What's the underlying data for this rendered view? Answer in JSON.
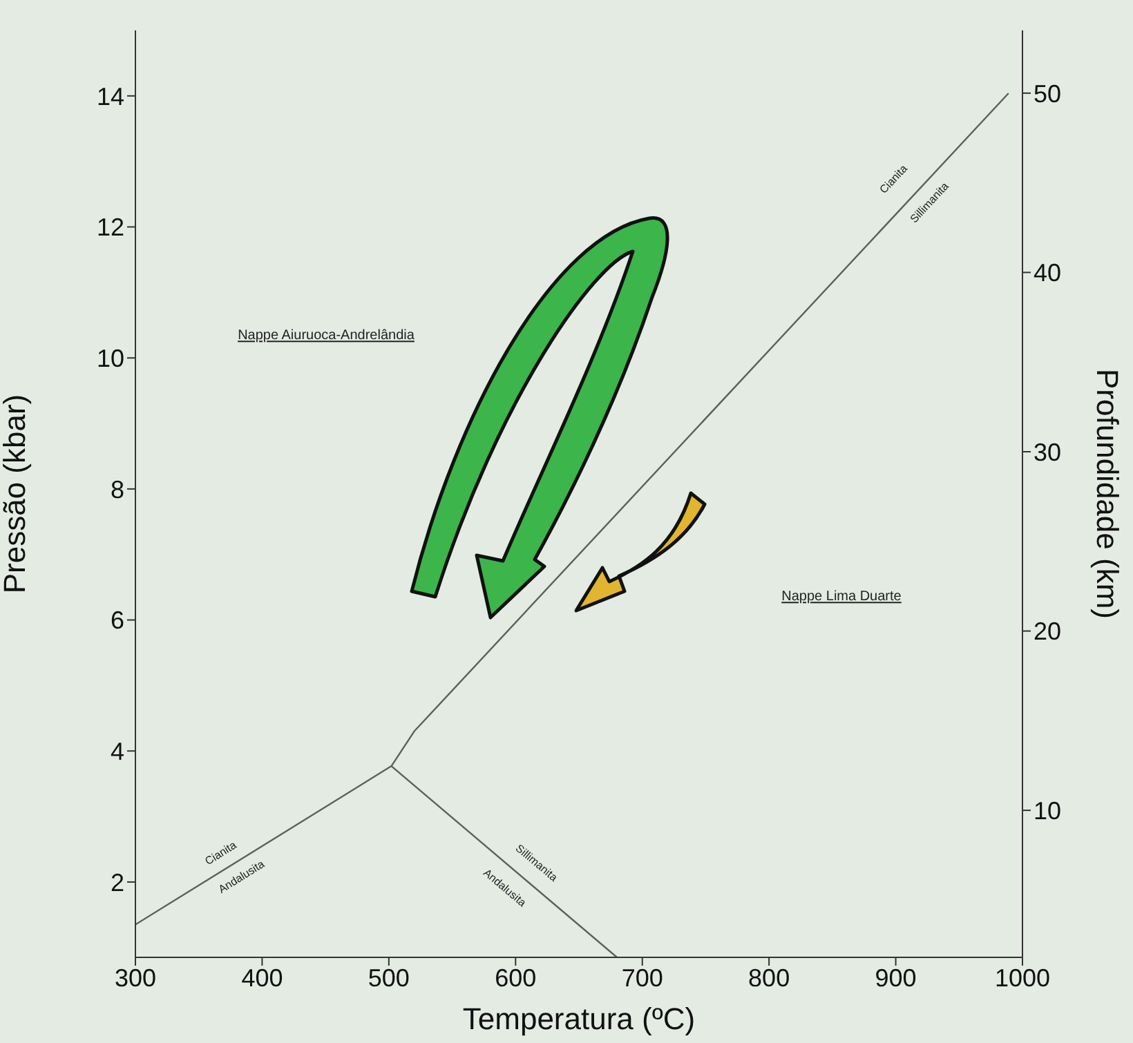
{
  "chart_data": {
    "type": "line",
    "xlabel": "Temperatura (ºC)",
    "ylabel": "Pressão (kbar)",
    "y2label": "Profundidade (km)",
    "xlim": [
      300,
      1000
    ],
    "xticks": [
      300,
      400,
      500,
      600,
      700,
      800,
      900,
      1000
    ],
    "ylim": [
      0.85,
      15
    ],
    "yticks": [
      2,
      4,
      6,
      8,
      10,
      12,
      14
    ],
    "y2lim": [
      1.8,
      53.5
    ],
    "y2ticks": [
      10,
      20,
      30,
      40,
      50
    ],
    "marker": "none",
    "line_style": "solid",
    "grid": false,
    "series": [
      {
        "type": "line",
        "color": "#5e5e5e",
        "x": [
          300,
          502,
          520,
          989
        ],
        "values": [
          1.35,
          3.77,
          4.3,
          14.04
        ]
      },
      {
        "type": "line",
        "color": "#5e5e5e",
        "x": [
          502,
          680
        ],
        "values": [
          3.77,
          0.85
        ]
      }
    ],
    "annotations": [
      "Nappe Aiuruoca-Andrelândia",
      "Nappe Lima Duarte",
      "Cianita",
      "Andalusita",
      "Sillimanita",
      "Andalusita",
      "Cianita",
      "Sillimanita"
    ]
  }
}
